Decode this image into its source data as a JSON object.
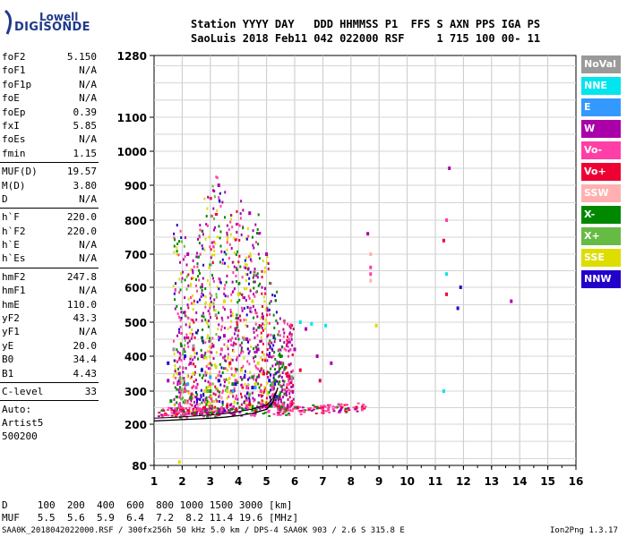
{
  "logo": {
    "line1": "Lowell",
    "line2": "DIGISONDE"
  },
  "header": {
    "line1": "Station YYYY DAY   DDD HHMMSS P1  FFS S AXN PPS IGA PS",
    "line2": "SaoLuis 2018 Feb11 042 022000 RSF     1 715 100 00- 11"
  },
  "params": [
    [
      [
        "foF2",
        "5.150"
      ],
      [
        "foF1",
        "N/A"
      ],
      [
        "foF1p",
        "N/A"
      ],
      [
        "foE",
        "N/A"
      ],
      [
        "foEp",
        "0.39"
      ],
      [
        "fxI",
        "5.85"
      ],
      [
        "foEs",
        "N/A"
      ],
      [
        "fmin",
        "1.15"
      ]
    ],
    [
      [
        "MUF(D)",
        "19.57"
      ],
      [
        "M(D)",
        "3.80"
      ],
      [
        "D",
        "N/A"
      ]
    ],
    [
      [
        "h`F",
        "220.0"
      ],
      [
        "h`F2",
        "220.0"
      ],
      [
        "h`E",
        "N/A"
      ],
      [
        "h`Es",
        "N/A"
      ]
    ],
    [
      [
        "hmF2",
        "247.8"
      ],
      [
        "hmF1",
        "N/A"
      ],
      [
        "hmE",
        "110.0"
      ],
      [
        "yF2",
        "43.3"
      ],
      [
        "yF1",
        "N/A"
      ],
      [
        "yE",
        "20.0"
      ],
      [
        "B0",
        "34.4"
      ],
      [
        "B1",
        "4.43"
      ]
    ],
    [
      [
        "C-level",
        "33"
      ]
    ]
  ],
  "auto": [
    "Auto:",
    "Artist5",
    "500200"
  ],
  "footer": {
    "d_line": "D     100  200  400  600  800 1000 1500 3000 [km]",
    "muf_line": "MUF   5.5  5.6  5.9  6.4  7.2  8.2 11.4 19.6 [MHz]",
    "file_line": "SAA0K_2018042022000.RSF / 300fx256h 50 kHz 5.0 km / DPS-4 SAA0K 903 / 2.6 S 315.8 E",
    "version": "Ion2Png 1.3.17"
  },
  "legend": [
    {
      "label": "NoVal",
      "color": "#9a9a9a"
    },
    {
      "label": "NNE",
      "color": "#00e5ee"
    },
    {
      "label": "E",
      "color": "#3399ff"
    },
    {
      "label": "W",
      "color": "#aa00aa"
    },
    {
      "label": "Vo-",
      "color": "#ff3fa6"
    },
    {
      "label": "Vo+",
      "color": "#ee0033"
    },
    {
      "label": "SSW",
      "color": "#ffb0b0"
    },
    {
      "label": "X-",
      "color": "#008800"
    },
    {
      "label": "X+",
      "color": "#66bb44"
    },
    {
      "label": "SSE",
      "color": "#dddd00"
    },
    {
      "label": "NNW",
      "color": "#2200cc"
    }
  ],
  "chart_data": {
    "type": "scatter",
    "title": "",
    "xlabel": "",
    "ylabel": "",
    "x_ticks": [
      1,
      2,
      3,
      4,
      5,
      6,
      7,
      8,
      9,
      10,
      11,
      12,
      13,
      14,
      15,
      16
    ],
    "y_ticks": [
      80,
      200,
      300,
      400,
      500,
      600,
      700,
      800,
      900,
      1000,
      1100,
      1280
    ],
    "xlim": [
      1,
      16
    ],
    "y_scale": "nonlinear (virtual height km)",
    "grid": true,
    "legend_position": "right",
    "series": [
      {
        "name": "Vo-",
        "color": "#ff3fa6",
        "points": [
          [
            1.3,
            225
          ],
          [
            1.8,
            235
          ],
          [
            2.2,
            240
          ],
          [
            2.6,
            245
          ],
          [
            3.0,
            250
          ],
          [
            3.4,
            248
          ],
          [
            3.8,
            250
          ],
          [
            4.3,
            255
          ],
          [
            4.8,
            260
          ],
          [
            5.3,
            265
          ],
          [
            5.6,
            255
          ],
          [
            6.0,
            250
          ],
          [
            6.5,
            245
          ],
          [
            7.2,
            245
          ],
          [
            7.8,
            242
          ],
          [
            8.4,
            245
          ],
          [
            2.1,
            300
          ],
          [
            2.5,
            310
          ],
          [
            3.0,
            320
          ],
          [
            3.4,
            420
          ],
          [
            3.9,
            330
          ],
          [
            4.3,
            310
          ],
          [
            4.8,
            300
          ],
          [
            5.2,
            310
          ],
          [
            8.7,
            640
          ],
          [
            8.7,
            660
          ],
          [
            11.4,
            800
          ]
        ]
      },
      {
        "name": "W",
        "color": "#aa00aa",
        "points": [
          [
            1.5,
            330
          ],
          [
            1.9,
            350
          ],
          [
            2.3,
            380
          ],
          [
            2.7,
            400
          ],
          [
            3.1,
            430
          ],
          [
            3.5,
            460
          ],
          [
            3.9,
            480
          ],
          [
            4.3,
            450
          ],
          [
            4.7,
            420
          ],
          [
            5.1,
            400
          ],
          [
            5.5,
            380
          ],
          [
            6.0,
            420
          ],
          [
            6.4,
            480
          ],
          [
            6.8,
            400
          ],
          [
            7.3,
            380
          ],
          [
            11.5,
            950
          ],
          [
            13.7,
            560
          ],
          [
            8.6,
            760
          ],
          [
            2.2,
            700
          ],
          [
            3.3,
            900
          ],
          [
            4.4,
            820
          ],
          [
            5.0,
            700
          ]
        ]
      },
      {
        "name": "Vo+",
        "color": "#ee0033",
        "points": [
          [
            1.4,
            230
          ],
          [
            2.0,
            245
          ],
          [
            2.8,
            250
          ],
          [
            3.6,
            255
          ],
          [
            4.4,
            260
          ],
          [
            5.3,
            262
          ],
          [
            6.1,
            250
          ],
          [
            7.0,
            248
          ],
          [
            8.2,
            250
          ],
          [
            2.4,
            420
          ],
          [
            3.7,
            380
          ],
          [
            4.9,
            350
          ],
          [
            6.2,
            360
          ],
          [
            6.9,
            330
          ],
          [
            11.4,
            580
          ],
          [
            11.3,
            740
          ]
        ]
      },
      {
        "name": "X-",
        "color": "#008800",
        "points": [
          [
            1.6,
            270
          ],
          [
            2.3,
            280
          ],
          [
            3.0,
            300
          ],
          [
            3.8,
            320
          ],
          [
            4.5,
            340
          ],
          [
            5.4,
            380
          ],
          [
            5.5,
            400
          ],
          [
            5.3,
            330
          ],
          [
            6.8,
            250
          ]
        ]
      },
      {
        "name": "X+",
        "color": "#66bb44",
        "points": [
          [
            2.1,
            270
          ],
          [
            2.9,
            300
          ],
          [
            3.6,
            310
          ],
          [
            4.4,
            290
          ],
          [
            5.2,
            320
          ],
          [
            5.9,
            340
          ]
        ]
      },
      {
        "name": "SSE",
        "color": "#dddd00",
        "points": [
          [
            2.4,
            350
          ],
          [
            3.0,
            550
          ],
          [
            3.5,
            560
          ],
          [
            4.0,
            580
          ],
          [
            4.5,
            560
          ],
          [
            3.2,
            370
          ],
          [
            4.1,
            360
          ],
          [
            4.7,
            380
          ],
          [
            2.8,
            300
          ],
          [
            3.6,
            300
          ],
          [
            4.6,
            320
          ],
          [
            8.9,
            490
          ],
          [
            1.9,
            90
          ]
        ]
      },
      {
        "name": "NNW",
        "color": "#2200cc",
        "points": [
          [
            1.5,
            380
          ],
          [
            2.1,
            400
          ],
          [
            2.7,
            360
          ],
          [
            3.3,
            330
          ],
          [
            3.9,
            320
          ],
          [
            4.5,
            310
          ],
          [
            5.1,
            330
          ],
          [
            11.9,
            600
          ],
          [
            11.8,
            540
          ]
        ]
      },
      {
        "name": "NNE",
        "color": "#00e5ee",
        "points": [
          [
            6.2,
            500
          ],
          [
            6.6,
            495
          ],
          [
            7.1,
            490
          ],
          [
            11.3,
            300
          ],
          [
            11.4,
            640
          ]
        ]
      },
      {
        "name": "E",
        "color": "#3399ff",
        "points": [
          [
            2.2,
            320
          ],
          [
            3.0,
            340
          ],
          [
            3.8,
            300
          ],
          [
            4.6,
            310
          ]
        ]
      },
      {
        "name": "SSW",
        "color": "#ffb0b0",
        "points": [
          [
            8.7,
            620
          ],
          [
            8.7,
            700
          ],
          [
            2.6,
            260
          ],
          [
            3.4,
            280
          ]
        ]
      },
      {
        "name": "NoVal",
        "color": "#9a9a9a",
        "points": [
          [
            1.7,
            420
          ],
          [
            2.4,
            430
          ],
          [
            3.2,
            520
          ],
          [
            4.2,
            450
          ]
        ]
      }
    ],
    "profile_curve": [
      [
        1.0,
        210
      ],
      [
        1.5,
        212
      ],
      [
        2.0,
        214
      ],
      [
        2.5,
        216
      ],
      [
        3.0,
        218
      ],
      [
        3.5,
        221
      ],
      [
        4.0,
        226
      ],
      [
        4.5,
        233
      ],
      [
        5.0,
        245
      ],
      [
        5.2,
        262
      ],
      [
        5.3,
        285
      ],
      [
        5.4,
        310
      ]
    ],
    "profile_curve2": [
      [
        1.0,
        218
      ],
      [
        1.5,
        220
      ],
      [
        2.0,
        222
      ],
      [
        2.5,
        225
      ],
      [
        3.0,
        228
      ],
      [
        3.5,
        232
      ],
      [
        4.0,
        238
      ],
      [
        4.5,
        246
      ],
      [
        5.0,
        258
      ],
      [
        5.2,
        275
      ],
      [
        5.35,
        300
      ]
    ],
    "noise_columns": [
      {
        "x": 1.8,
        "ymin": 230,
        "ymax": 820,
        "colors": [
          "#aa00aa",
          "#ff3fa6",
          "#dddd00",
          "#008800",
          "#2200cc"
        ]
      },
      {
        "x": 2.0,
        "ymin": 225,
        "ymax": 760,
        "colors": [
          "#aa00aa",
          "#ff3fa6",
          "#008800",
          "#66bb44"
        ]
      },
      {
        "x": 2.3,
        "ymin": 230,
        "ymax": 700,
        "colors": [
          "#aa00aa",
          "#ff3fa6",
          "#dddd00",
          "#ee0033"
        ]
      },
      {
        "x": 2.6,
        "ymin": 235,
        "ymax": 800,
        "colors": [
          "#aa00aa",
          "#ff3fa6",
          "#008800",
          "#2200cc"
        ]
      },
      {
        "x": 2.9,
        "ymin": 240,
        "ymax": 880,
        "colors": [
          "#aa00aa",
          "#dddd00",
          "#ff3fa6",
          "#008800"
        ]
      },
      {
        "x": 3.1,
        "ymin": 240,
        "ymax": 960,
        "colors": [
          "#aa00aa",
          "#ff3fa6",
          "#ee0033",
          "#dddd00",
          "#66bb44"
        ]
      },
      {
        "x": 3.4,
        "ymin": 240,
        "ymax": 900,
        "colors": [
          "#aa00aa",
          "#ff3fa6",
          "#008800",
          "#2200cc"
        ]
      },
      {
        "x": 3.7,
        "ymin": 245,
        "ymax": 820,
        "colors": [
          "#aa00aa",
          "#dddd00",
          "#ff3fa6"
        ]
      },
      {
        "x": 4.0,
        "ymin": 245,
        "ymax": 880,
        "colors": [
          "#aa00aa",
          "#ff3fa6",
          "#008800",
          "#ee0033"
        ]
      },
      {
        "x": 4.3,
        "ymin": 250,
        "ymax": 780,
        "colors": [
          "#aa00aa",
          "#dddd00",
          "#2200cc",
          "#ff3fa6"
        ]
      },
      {
        "x": 4.6,
        "ymin": 250,
        "ymax": 820,
        "colors": [
          "#aa00aa",
          "#ff3fa6",
          "#008800"
        ]
      },
      {
        "x": 4.9,
        "ymin": 255,
        "ymax": 700,
        "colors": [
          "#aa00aa",
          "#dddd00",
          "#ee0033"
        ]
      },
      {
        "x": 5.2,
        "ymin": 258,
        "ymax": 620,
        "colors": [
          "#aa00aa",
          "#ff3fa6",
          "#008800",
          "#2200cc"
        ]
      },
      {
        "x": 5.5,
        "ymin": 250,
        "ymax": 520,
        "colors": [
          "#aa00aa",
          "#ff3fa6",
          "#008800"
        ]
      },
      {
        "x": 5.8,
        "ymin": 245,
        "ymax": 500,
        "colors": [
          "#aa00aa",
          "#ee0033",
          "#ff3fa6"
        ]
      }
    ]
  }
}
